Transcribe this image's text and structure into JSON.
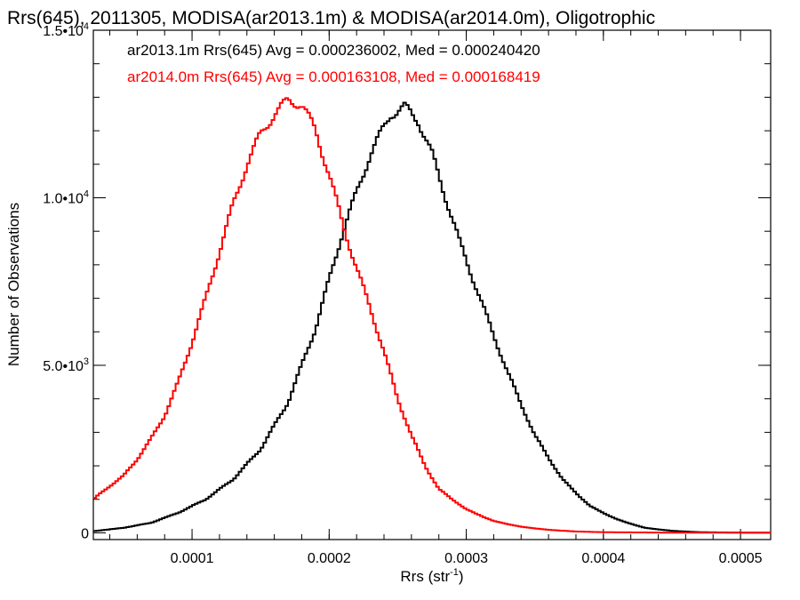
{
  "chart_data": {
    "type": "line",
    "title": "Rrs(645), 2011305, MODISA(ar2013.1m) & MODISA(ar2014.0m), Oligotrophic",
    "xlabel": {
      "base": "Rrs (str",
      "sup": "-1",
      "close": ")"
    },
    "ylabel": "Number of Observations",
    "xlim": [
      2.8e-05,
      0.000522
    ],
    "ylim": [
      -200,
      15000
    ],
    "x_ticks": [
      {
        "value": 0.0001,
        "label": "0.0001"
      },
      {
        "value": 0.0002,
        "label": "0.0002"
      },
      {
        "value": 0.0003,
        "label": "0.0003"
      },
      {
        "value": 0.0004,
        "label": "0.0004"
      },
      {
        "value": 0.0005,
        "label": "0.0005"
      }
    ],
    "y_ticks": [
      {
        "value": 0,
        "base": "0",
        "exp": ""
      },
      {
        "value": 5000,
        "base": "5.0•10",
        "exp": "3"
      },
      {
        "value": 10000,
        "base": "1.0•10",
        "exp": "4"
      },
      {
        "value": 15000,
        "base": "1.5•10",
        "exp": "4"
      }
    ],
    "grid": false,
    "legend_position": "top-left",
    "series": [
      {
        "legend": "ar2013.1m Rrs(645) Avg = 0.000236002, Med = 0.000240420",
        "color": "#000000",
        "x": [
          2.8e-05,
          5e-05,
          7e-05,
          9e-05,
          0.00011,
          0.00013,
          0.00015,
          0.00017,
          0.00019,
          0.00021,
          0.00023,
          0.000245,
          0.000255,
          0.000265,
          0.000275,
          0.000285,
          0.000295,
          0.00031,
          0.00033,
          0.00035,
          0.00037,
          0.00039,
          0.00041,
          0.00043,
          0.00045,
          0.00047,
          0.00049,
          0.00051,
          0.000522
        ],
        "y": [
          50,
          150,
          300,
          600,
          1000,
          1600,
          2500,
          3900,
          6100,
          9000,
          11300,
          12500,
          12700,
          12300,
          11300,
          10000,
          8700,
          7000,
          4800,
          2900,
          1600,
          800,
          400,
          150,
          60,
          20,
          10,
          5,
          5
        ]
      },
      {
        "legend": "ar2014.0m Rrs(645) Avg = 0.000163108, Med = 0.000168419",
        "color": "#ff0000",
        "x": [
          2.8e-05,
          4e-05,
          5e-05,
          6e-05,
          7e-05,
          8e-05,
          9e-05,
          0.0001,
          0.00011,
          0.00012,
          0.00013,
          0.00014,
          0.00015,
          0.00016,
          0.00017,
          0.00018,
          0.00019,
          0.0002,
          0.00021,
          0.00022,
          0.00023,
          0.00024,
          0.00025,
          0.00026,
          0.00027,
          0.00028,
          0.0003,
          0.00032,
          0.00034,
          0.00036,
          0.00038,
          0.0004,
          0.00045,
          0.000522
        ],
        "y": [
          1000,
          1400,
          1700,
          2200,
          2800,
          3500,
          4500,
          5700,
          7000,
          8400,
          9800,
          11000,
          11900,
          12500,
          12900,
          12800,
          12000,
          10700,
          9200,
          7900,
          6700,
          5400,
          4000,
          2900,
          2000,
          1300,
          700,
          350,
          180,
          90,
          40,
          20,
          5,
          5
        ]
      }
    ]
  }
}
